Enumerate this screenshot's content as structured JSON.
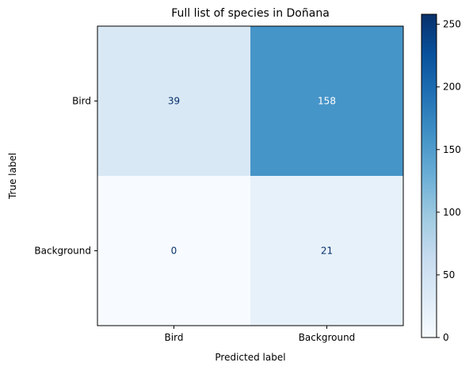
{
  "chart_data": {
    "type": "heatmap",
    "title": "Full list of species in Doñana",
    "xlabel": "Predicted label",
    "ylabel": "True label",
    "x_categories": [
      "Bird",
      "Background"
    ],
    "y_categories": [
      "Bird",
      "Background"
    ],
    "values": [
      [
        39,
        158
      ],
      [
        0,
        21
      ]
    ],
    "colorbar": {
      "range": [
        0,
        258
      ],
      "ticks": [
        "0",
        "50",
        "100",
        "150",
        "200",
        "250"
      ],
      "colormap": "Blues",
      "placement": "right"
    }
  }
}
